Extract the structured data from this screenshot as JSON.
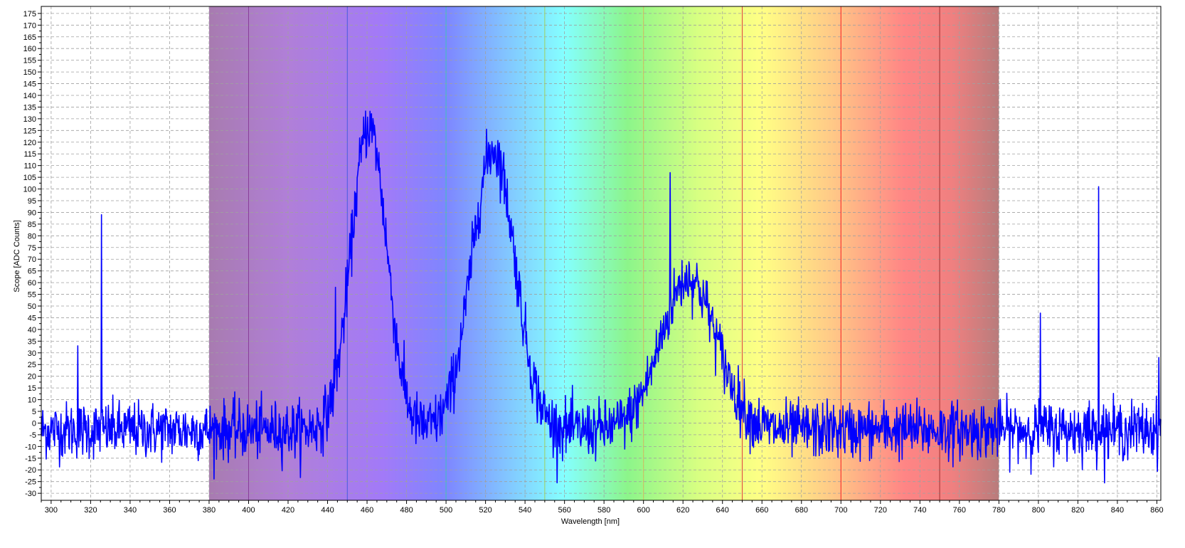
{
  "chart_data": {
    "type": "line",
    "xlabel": "Wavelength [nm]",
    "ylabel": "Scope [ADC Counts]",
    "xlim": [
      295,
      862
    ],
    "ylim": [
      -33,
      178
    ],
    "x_ticks": [
      300,
      320,
      340,
      360,
      380,
      400,
      420,
      440,
      460,
      480,
      500,
      520,
      540,
      560,
      580,
      600,
      620,
      640,
      660,
      680,
      700,
      720,
      740,
      760,
      780,
      800,
      820,
      840,
      860
    ],
    "y_ticks": [
      -30,
      -25,
      -20,
      -15,
      -10,
      -5,
      0,
      5,
      10,
      15,
      20,
      25,
      30,
      35,
      40,
      45,
      50,
      55,
      60,
      65,
      70,
      75,
      80,
      85,
      90,
      95,
      100,
      105,
      110,
      115,
      120,
      125,
      130,
      135,
      140,
      145,
      150,
      155,
      160,
      165,
      170,
      175
    ],
    "grid": true,
    "series_color": "#0000ff",
    "background_band": {
      "x_start": 380,
      "x_end": 780,
      "description_colors": [
        "#b080c0",
        "#a070ff",
        "#7080ff",
        "#80d0ff",
        "#80ffff",
        "#80f080",
        "#d0ff80",
        "#ffff80",
        "#ffc080",
        "#ff8080",
        "#c08080"
      ]
    },
    "band_lines": [
      400,
      450,
      500,
      550,
      600,
      650,
      700,
      750
    ],
    "series": [
      {
        "peaks": [
          {
            "center": 461,
            "height": 130,
            "width": 9
          },
          {
            "center": 524,
            "height": 120,
            "width": 11
          },
          {
            "center": 623,
            "height": 65,
            "width": 14
          }
        ],
        "baseline": -3,
        "noise_amplitude": 8,
        "spikes": [
          {
            "x": 325.5,
            "y": 89
          },
          {
            "x": 313.5,
            "y": 33
          },
          {
            "x": 801,
            "y": 47
          },
          {
            "x": 830.5,
            "y": 101
          },
          {
            "x": 613.5,
            "y": 107
          },
          {
            "x": 444,
            "y": 58
          },
          {
            "x": 861,
            "y": 28
          }
        ]
      }
    ]
  }
}
